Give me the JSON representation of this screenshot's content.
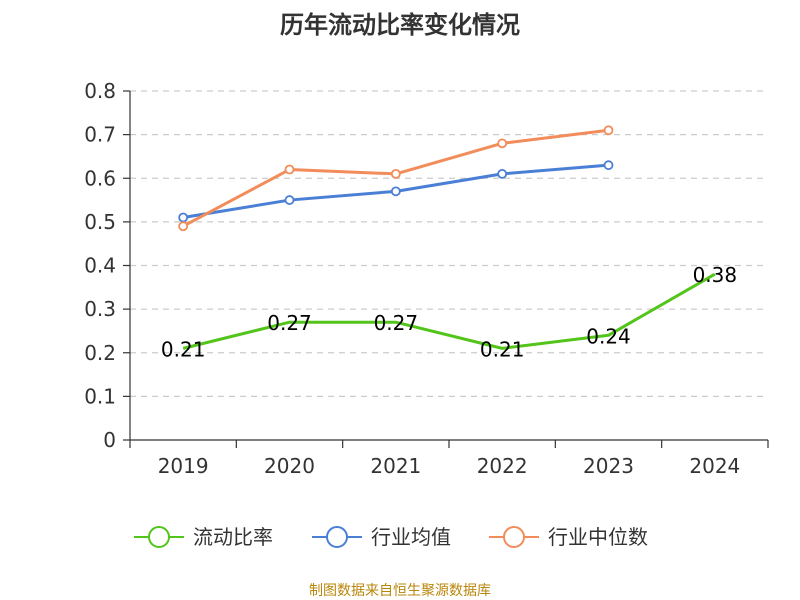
{
  "chart_data": {
    "type": "line",
    "title": "历年流动比率变化情况",
    "categories": [
      "2019",
      "2020",
      "2021",
      "2022",
      "2023",
      "2024"
    ],
    "ylim": [
      0,
      0.8
    ],
    "yticks": [
      "0",
      "0.1",
      "0.2",
      "0.3",
      "0.4",
      "0.5",
      "0.6",
      "0.7",
      "0.8"
    ],
    "grid": true,
    "legend_position": "bottom",
    "series": [
      {
        "name": "流动比率",
        "color": "#52c41a",
        "values": [
          0.21,
          0.27,
          0.27,
          0.21,
          0.24,
          0.38
        ],
        "labels": [
          "0.21",
          "0.27",
          "0.27",
          "0.21",
          "0.24",
          "0.38"
        ],
        "show_labels": true,
        "show_markers": false
      },
      {
        "name": "行业均值",
        "color": "#4a7fd6",
        "values": [
          0.51,
          0.55,
          0.57,
          0.61,
          0.63,
          null
        ],
        "show_labels": false,
        "show_markers": true
      },
      {
        "name": "行业中位数",
        "color": "#f28c5a",
        "values": [
          0.49,
          0.62,
          0.61,
          0.68,
          0.71,
          null
        ],
        "show_labels": false,
        "show_markers": true
      }
    ]
  },
  "footer": {
    "source": "制图数据来自恒生聚源数据库"
  }
}
